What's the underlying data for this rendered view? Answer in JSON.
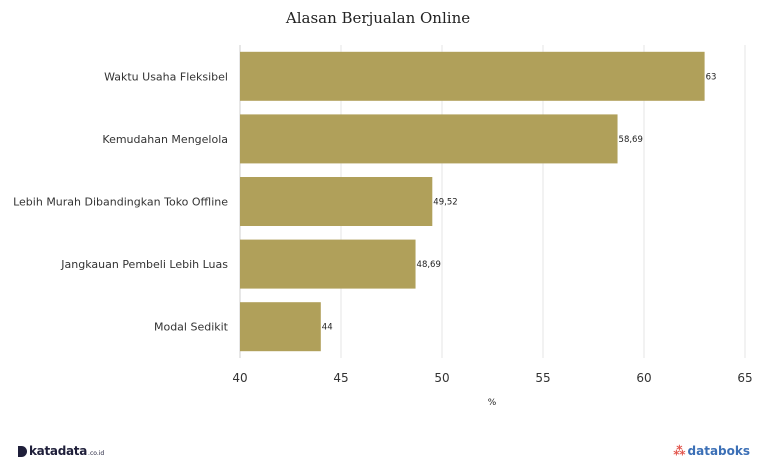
{
  "chart_data": {
    "type": "bar",
    "orientation": "horizontal",
    "title": "Alasan Berjualan Online",
    "xlabel": "%",
    "ylabel": "",
    "xlim": [
      40,
      65
    ],
    "ticks": [
      "40",
      "45",
      "50",
      "55",
      "60",
      "65"
    ],
    "categories": [
      "Waktu Usaha Fleksibel",
      "Kemudahan Mengelola",
      "Lebih Murah Dibandingkan Toko Offline",
      "Jangkauan Pembeli Lebih Luas",
      "Modal Sedikit"
    ],
    "values": [
      63,
      58.69,
      49.52,
      48.69,
      44
    ],
    "value_labels": [
      "63",
      "58,69",
      "49,52",
      "48,69",
      "44"
    ],
    "bar_color": "#b0a05a",
    "grid": true
  },
  "footer": {
    "left_brand": "katadata",
    "left_brand_suffix": ".co.id",
    "right_brand": "databoks",
    "right_icon": "databoks-logo-icon",
    "left_icon": "katadata-logo-icon"
  }
}
